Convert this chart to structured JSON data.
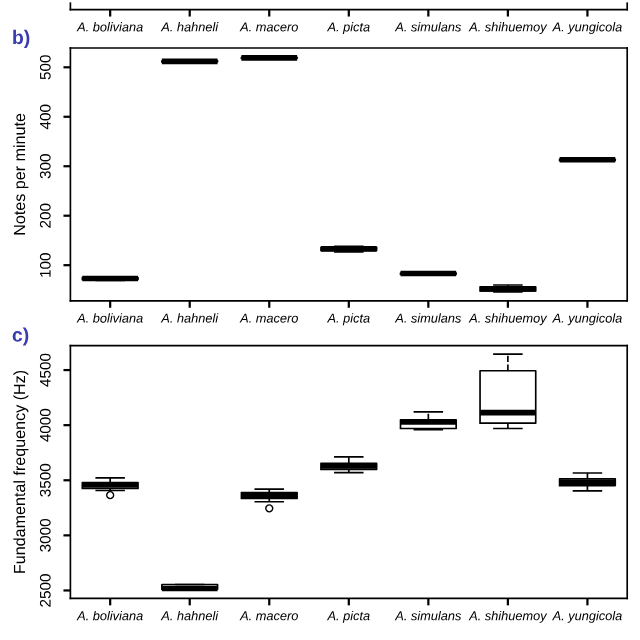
{
  "chart_data": [
    {
      "type": "other",
      "categories": [
        "A. boliviana",
        "A. hahneli",
        "A. macero",
        "A. picta",
        "A. simulans",
        "A. shihuemoy",
        "A. yungicola"
      ]
    },
    {
      "type": "box",
      "annotations": [
        "b)"
      ],
      "ylabel": "Notes per minute",
      "categories": [
        "A. boliviana",
        "A. hahneli",
        "A. macero",
        "A. picta",
        "A. simulans",
        "A. shihuemoy",
        "A. yungicola"
      ],
      "ylim": [
        28,
        539
      ],
      "yticks": [
        100,
        200,
        300,
        400,
        500
      ],
      "grid": false,
      "boxes": [
        {
          "low": 69,
          "q1": 71,
          "median": 73,
          "q3": 75,
          "high": 76
        },
        {
          "low": 510,
          "q1": 511,
          "median": 512,
          "q3": 513,
          "high": 514
        },
        {
          "low": 517,
          "q1": 518,
          "median": 519,
          "q3": 520,
          "high": 521
        },
        {
          "low": 127,
          "q1": 130,
          "median": 133,
          "q3": 136,
          "high": 138
        },
        {
          "low": 81,
          "q1": 82,
          "median": 83,
          "q3": 84,
          "high": 85
        },
        {
          "low": 46,
          "q1": 48,
          "median": 52,
          "q3": 56,
          "high": 60
        },
        {
          "low": 311,
          "q1": 312,
          "median": 313,
          "q3": 314,
          "high": 315
        }
      ]
    },
    {
      "type": "box",
      "annotations": [
        "c)"
      ],
      "ylabel": "Fundamental frequency (Hz)",
      "categories": [
        "A. boliviana",
        "A. hahneli",
        "A. macero",
        "A. picta",
        "A. simulans",
        "A. shihuemoy",
        "A. yungicola"
      ],
      "ylim": [
        2428,
        4722
      ],
      "yticks": [
        2500,
        3000,
        3500,
        4000,
        4500
      ],
      "grid": false,
      "boxes": [
        {
          "low": 3407,
          "q1": 3425,
          "median": 3458,
          "q3": 3479,
          "high": 3521,
          "outliers": [
            3365
          ]
        },
        {
          "low": 2512,
          "q1": 2512,
          "median": 2518,
          "q3": 2554,
          "high": 2554
        },
        {
          "low": 3305,
          "q1": 3335,
          "median": 3365,
          "q3": 3389,
          "high": 3419,
          "outliers": [
            3245
          ]
        },
        {
          "low": 3569,
          "q1": 3599,
          "median": 3629,
          "q3": 3653,
          "high": 3713
        },
        {
          "low": 3960,
          "q1": 3970,
          "median": 4030,
          "q3": 4048,
          "high": 4120
        },
        {
          "low": 3970,
          "q1": 4018,
          "median": 4114,
          "q3": 4494,
          "high": 4644
        },
        {
          "low": 3404,
          "q1": 3452,
          "median": 3482,
          "q3": 3512,
          "high": 3566
        }
      ]
    }
  ]
}
